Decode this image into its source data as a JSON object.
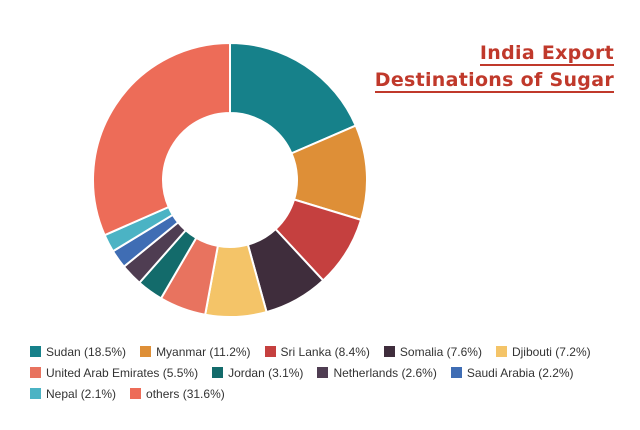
{
  "chart_data": {
    "type": "pie",
    "donut": true,
    "title_lines": [
      "India Export",
      "Destinations of Sugar"
    ],
    "legend_position": "bottom",
    "slices": [
      {
        "label": "Sudan (18.5%)",
        "value": 18.5,
        "color": "#16818a"
      },
      {
        "label": "Myanmar (11.2%)",
        "value": 11.2,
        "color": "#de8f37"
      },
      {
        "label": "Sri Lanka (8.4%)",
        "value": 8.4,
        "color": "#c5403f"
      },
      {
        "label": "Somalia (7.6%)",
        "value": 7.6,
        "color": "#3f2d3c"
      },
      {
        "label": "Djibouti (7.2%)",
        "value": 7.2,
        "color": "#f4c468"
      },
      {
        "label": "United Arab Emirates (5.5%)",
        "value": 5.5,
        "color": "#e8735f"
      },
      {
        "label": "Jordan (3.1%)",
        "value": 3.1,
        "color": "#136b6b"
      },
      {
        "label": "Netherlands (2.6%)",
        "value": 2.6,
        "color": "#4f3d52"
      },
      {
        "label": "Saudi Arabia (2.2%)",
        "value": 2.2,
        "color": "#3f6db4"
      },
      {
        "label": "Nepal (2.1%)",
        "value": 2.1,
        "color": "#4bb3c4"
      },
      {
        "label": "others (31.6%)",
        "value": 31.6,
        "color": "#ed6c58"
      }
    ]
  }
}
